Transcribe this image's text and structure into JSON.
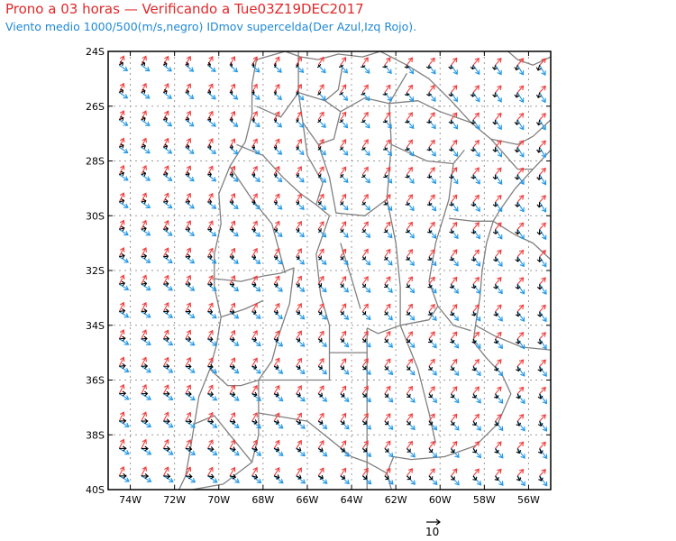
{
  "header": {
    "title": "Prono a 03 horas — Verificando a Tue03Z19DEC2017",
    "subtitle": "Viento medio 1000/500(m/s,negro) IDmov supercelda(Der Azul,Izq Rojo)."
  },
  "map": {
    "lon_range": [
      -75,
      -55
    ],
    "lat_range": [
      -40,
      -24
    ],
    "lat_ticks": [
      "24S",
      "26S",
      "28S",
      "30S",
      "32S",
      "34S",
      "36S",
      "38S",
      "40S"
    ],
    "lon_ticks": [
      "74W",
      "72W",
      "70W",
      "68W",
      "66W",
      "64W",
      "62W",
      "60W",
      "58W",
      "56W"
    ],
    "grid": true,
    "vector_series": [
      {
        "legend": "negro",
        "color": "#000000"
      },
      {
        "legend": "Der Azul",
        "color": "#1e96e6"
      },
      {
        "legend": "Izq Rojo",
        "color": "#f03c3c"
      }
    ],
    "reference_vector_label": "10",
    "border_color": "#808080"
  }
}
